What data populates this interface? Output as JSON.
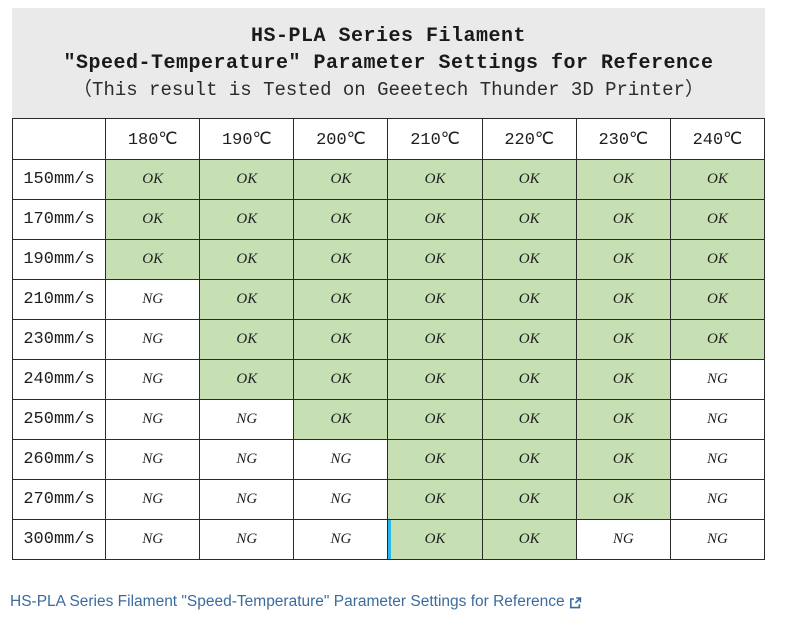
{
  "header": {
    "title_line1": "HS-PLA Series Filament",
    "title_line2": "″Speed-Temperature″ Parameter Settings for Reference",
    "title_line3": "（This result is Tested on Geeetech Thunder 3D Printer）"
  },
  "chart_data": {
    "type": "table",
    "title": "HS-PLA Series Filament ″Speed-Temperature″ Parameter Settings for Reference",
    "columns": [
      "",
      "180℃",
      "190℃",
      "200℃",
      "210℃",
      "220℃",
      "230℃",
      "240℃"
    ],
    "rows": [
      {
        "speed": "150mm/s",
        "values": [
          "OK",
          "OK",
          "OK",
          "OK",
          "OK",
          "OK",
          "OK"
        ]
      },
      {
        "speed": "170mm/s",
        "values": [
          "OK",
          "OK",
          "OK",
          "OK",
          "OK",
          "OK",
          "OK"
        ]
      },
      {
        "speed": "190mm/s",
        "values": [
          "OK",
          "OK",
          "OK",
          "OK",
          "OK",
          "OK",
          "OK"
        ]
      },
      {
        "speed": "210mm/s",
        "values": [
          "NG",
          "OK",
          "OK",
          "OK",
          "OK",
          "OK",
          "OK"
        ]
      },
      {
        "speed": "230mm/s",
        "values": [
          "NG",
          "OK",
          "OK",
          "OK",
          "OK",
          "OK",
          "OK"
        ]
      },
      {
        "speed": "240mm/s",
        "values": [
          "NG",
          "OK",
          "OK",
          "OK",
          "OK",
          "OK",
          "NG"
        ]
      },
      {
        "speed": "250mm/s",
        "values": [
          "NG",
          "NG",
          "OK",
          "OK",
          "OK",
          "OK",
          "NG"
        ]
      },
      {
        "speed": "260mm/s",
        "values": [
          "NG",
          "NG",
          "NG",
          "OK",
          "OK",
          "OK",
          "NG"
        ]
      },
      {
        "speed": "270mm/s",
        "values": [
          "NG",
          "NG",
          "NG",
          "OK",
          "OK",
          "OK",
          "NG"
        ]
      },
      {
        "speed": "300mm/s",
        "values": [
          "NG",
          "NG",
          "NG",
          "OK",
          "OK",
          "NG",
          "NG"
        ]
      }
    ],
    "cell_highlight": {
      "row": "300mm/s",
      "column": "210℃",
      "edge": "left"
    }
  },
  "colors": {
    "ok_cell": "#c6e0b4",
    "ng_cell": "#ffffff",
    "title_background": "#eaeaea",
    "table_border": "#2a2a2a",
    "link": "#3a6b9e",
    "highlight_edge": "#2bb5e8"
  },
  "footer": {
    "link_text": "HS-PLA Series Filament \"Speed-Temperature\" Parameter Settings for Reference"
  }
}
